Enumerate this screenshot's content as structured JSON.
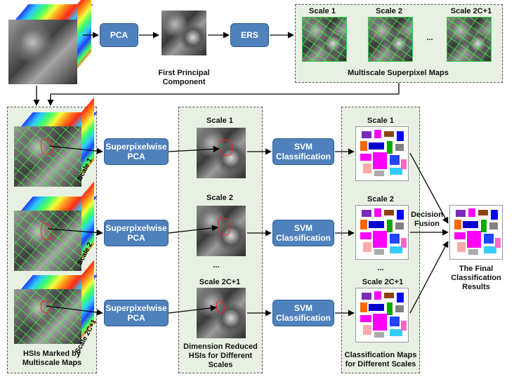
{
  "top_row": {
    "pca_label": "PCA",
    "first_pc_label": "First Principal Component",
    "ers_label": "ERS",
    "multiscale_panel": {
      "scale_labels": [
        "Scale 1",
        "Scale 2",
        "Scale 2C+1"
      ],
      "ellipsis": "...",
      "caption": "Multiscale Superpixel Maps"
    }
  },
  "left_panel": {
    "scale_labels": [
      "Scale 1",
      "Scale 2",
      "Scale 2C+1"
    ],
    "caption": "HSIs Marked by Multiscale Maps"
  },
  "process_boxes": {
    "superpixelwise_pca": "Superpixelwise PCA",
    "svm": "SVM Classification"
  },
  "middle_panel": {
    "scale_labels": [
      "Scale 1",
      "Scale 2",
      "Scale 2C+1"
    ],
    "ellipsis": "...",
    "caption": "Dimension Reduced HSIs for Different Scales"
  },
  "right_panel": {
    "scale_labels": [
      "Scale 1",
      "Scale 2",
      "Scale 2C+1"
    ],
    "ellipsis": "...",
    "caption": "Classification Maps for Different Scales"
  },
  "decision_fusion": "Decision Fusion",
  "final_label": "The Final Classification Results",
  "colors": {
    "process_box": "#4f81bd",
    "panel_bg": "#e8f0e4",
    "superpixel_line": "#2ecc40",
    "marked_region": "#ff2020"
  }
}
